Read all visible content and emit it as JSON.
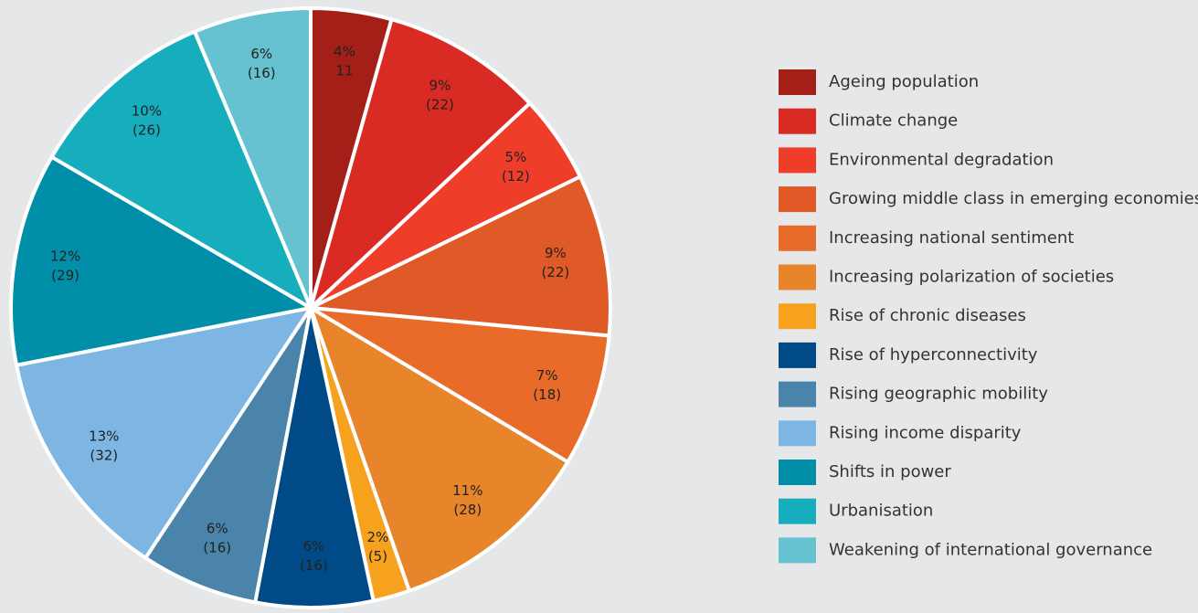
{
  "chart_data": {
    "type": "pie",
    "categories": [
      "Ageing population",
      "Climate change",
      "Environmental degradation",
      "Growing middle class in emerging economies",
      "Increasing national sentiment",
      "Increasing polarization of societies",
      "Rise of chronic diseases",
      "Rise of hyperconnectivity",
      "Rising geographic mobility",
      "Rising income disparity",
      "Shifts in power",
      "Urbanisation",
      "Weakening of international governance"
    ],
    "values": [
      4,
      9,
      5,
      9,
      7,
      11,
      2,
      6,
      6,
      13,
      12,
      10,
      6
    ],
    "value_labels": [
      "4%",
      "9%",
      "5%",
      "9%",
      "7%",
      "11%",
      "2%",
      "6%",
      "6%",
      "13%",
      "12%",
      "10%",
      "6%"
    ],
    "counts": [
      11,
      22,
      12,
      22,
      18,
      28,
      5,
      16,
      16,
      32,
      29,
      26,
      16
    ],
    "count_labels": [
      "11",
      "(22)",
      "(12)",
      "(22)",
      "(18)",
      "(28)",
      "(5)",
      "(16)",
      "(16)",
      "(32)",
      "(29)",
      "(26)",
      "(16)"
    ],
    "colors": [
      "#a31f17",
      "#d92b24",
      "#ee3d28",
      "#e05a27",
      "#e86b2a",
      "#e8842a",
      "#f6a21f",
      "#004a87",
      "#4a84aa",
      "#7db6e2",
      "#008ea8",
      "#16adbd",
      "#66c2d0"
    ],
    "legend": "right"
  }
}
